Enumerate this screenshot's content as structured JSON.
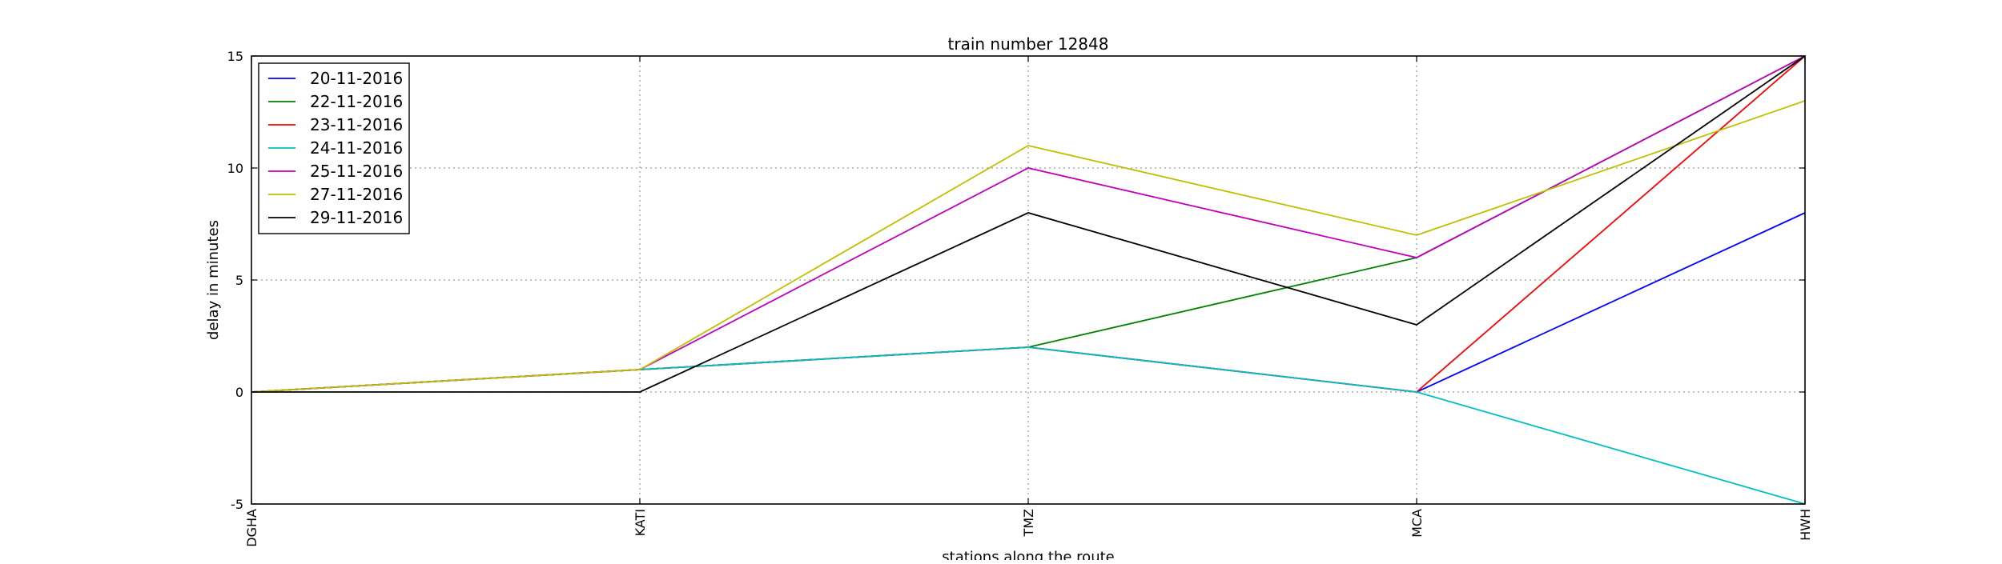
{
  "chart_data": {
    "type": "line",
    "title": "train number 12848",
    "xlabel": "stations along the route",
    "ylabel": "delay in minutes",
    "categories": [
      "DGHA",
      "KATI",
      "TMZ",
      "MCA",
      "HWH"
    ],
    "ylim": [
      -5,
      15
    ],
    "yticks": [
      -5,
      0,
      5,
      10,
      15
    ],
    "grid": true,
    "legend_position": "top-left",
    "series": [
      {
        "name": "20-11-2016",
        "color": "#0000ff",
        "values": [
          0,
          1,
          2,
          0,
          8
        ]
      },
      {
        "name": "22-11-2016",
        "color": "#008000",
        "values": [
          0,
          1,
          2,
          6,
          15
        ]
      },
      {
        "name": "23-11-2016",
        "color": "#ff0000",
        "values": [
          0,
          1,
          2,
          0,
          15
        ]
      },
      {
        "name": "24-11-2016",
        "color": "#00bfbf",
        "values": [
          0,
          1,
          2,
          0,
          -5
        ]
      },
      {
        "name": "25-11-2016",
        "color": "#bf00bf",
        "values": [
          0,
          1,
          10,
          6,
          15
        ]
      },
      {
        "name": "27-11-2016",
        "color": "#bfbf00",
        "values": [
          0,
          1,
          11,
          7,
          13
        ]
      },
      {
        "name": "29-11-2016",
        "color": "#000000",
        "values": [
          0,
          0,
          8,
          3,
          15
        ]
      }
    ]
  }
}
